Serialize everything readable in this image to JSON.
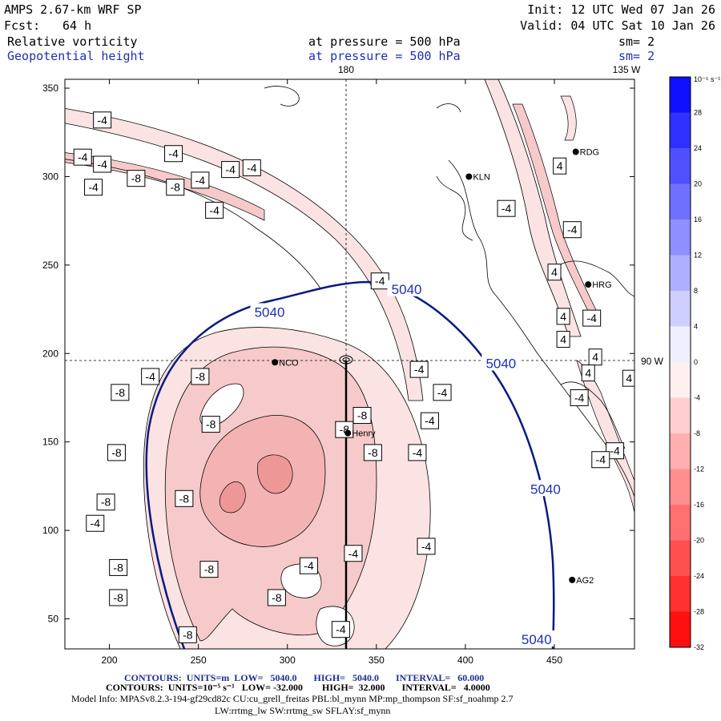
{
  "header": {
    "model": "AMPS 2.67-km WRF SP",
    "init": "Init: 12 UTC Wed 07 Jan 26",
    "fcst_label": "Fcst:",
    "fcst_value": "64 h",
    "valid": "Valid: 04 UTC Sat 10 Jan 26",
    "field1": "Relative vorticity",
    "field1_level": "at pressure =  500 hPa",
    "field1_sm": "sm= 2",
    "field2": "Geopotential height",
    "field2_level": "at pressure =  500 hPa",
    "field2_sm": "sm= 2",
    "lon_180": "180",
    "lon_135w": "135 W",
    "lat_90w": "90 W"
  },
  "footer": {
    "line1": "CONTOURS:  UNITS=m  LOW=   5040.0       HIGH=   5040.0       INTERVAL=   60.000",
    "line2": "CONTOURS:  UNITS=10⁻⁵ s⁻¹   LOW= -32.000        HIGH=  32.000       INTERVAL=   4.0000",
    "line3": "Model Info: MPASv8.2.3-194-gf29cd82c CU:cu_grell_freitas PBL:bl_mynn MP:mp_thompson SF:sf_noahmp 2.7",
    "line4": "LW:rrtmg_lw SW:rrtmg_sw SFLAY:sf_mynn"
  },
  "colors": {
    "neg_light": "#fbe3e3",
    "neg_mid": "#f4bcbc",
    "neg_strong": "#ee9797",
    "geo_line": "#0a1a80",
    "axis": "#000000"
  },
  "chart_data": {
    "type": "contour-map",
    "title": "Relative vorticity / Geopotential height at 500 hPa",
    "x_ticks": [
      200,
      250,
      300,
      350,
      400,
      450
    ],
    "y_ticks": [
      50,
      100,
      150,
      200,
      250,
      300,
      350
    ],
    "xlim": [
      175,
      495
    ],
    "ylim": [
      33,
      355
    ],
    "colorbar": {
      "units": "10⁻⁵ s⁻¹",
      "levels": [
        "32",
        "28",
        "24",
        "20",
        "16",
        "12",
        "8",
        "4",
        "0",
        "-4",
        "-8",
        "-12",
        "-16",
        "-20",
        "-24",
        "-28",
        "-32"
      ]
    },
    "geopotential_label": "5040",
    "geopotential_labels": [
      {
        "x": 290,
        "y": 223
      },
      {
        "x": 367,
        "y": 236
      },
      {
        "x": 420,
        "y": 194
      },
      {
        "x": 445,
        "y": 123
      },
      {
        "x": 440,
        "y": 38
      }
    ],
    "vorticity_labels": [
      {
        "t": "-4",
        "x": 196,
        "y": 332
      },
      {
        "t": "-4",
        "x": 185,
        "y": 311
      },
      {
        "t": "-4",
        "x": 196,
        "y": 307
      },
      {
        "t": "-4",
        "x": 236,
        "y": 313
      },
      {
        "t": "-8",
        "x": 215,
        "y": 299
      },
      {
        "t": "-4",
        "x": 191,
        "y": 294
      },
      {
        "t": "-8",
        "x": 237,
        "y": 294
      },
      {
        "t": "-4",
        "x": 251,
        "y": 298
      },
      {
        "t": "-4",
        "x": 268,
        "y": 304
      },
      {
        "t": "-4",
        "x": 280,
        "y": 305
      },
      {
        "t": "-4",
        "x": 259,
        "y": 281
      },
      {
        "t": "-4",
        "x": 423,
        "y": 282
      },
      {
        "t": "4",
        "x": 453,
        "y": 306
      },
      {
        "t": "-4",
        "x": 460,
        "y": 270
      },
      {
        "t": "4",
        "x": 450,
        "y": 246
      },
      {
        "t": "4",
        "x": 455,
        "y": 221
      },
      {
        "t": "-4",
        "x": 471,
        "y": 220
      },
      {
        "t": "4",
        "x": 455,
        "y": 208
      },
      {
        "t": "4",
        "x": 473,
        "y": 198
      },
      {
        "t": "4",
        "x": 469,
        "y": 189
      },
      {
        "t": "-4",
        "x": 464,
        "y": 175
      },
      {
        "t": "-4",
        "x": 484,
        "y": 145
      },
      {
        "t": "4",
        "x": 492,
        "y": 186
      },
      {
        "t": "-4",
        "x": 352,
        "y": 241
      },
      {
        "t": "-4",
        "x": 223,
        "y": 187
      },
      {
        "t": "-8",
        "x": 251,
        "y": 187
      },
      {
        "t": "-8",
        "x": 206,
        "y": 178
      },
      {
        "t": "-8",
        "x": 257,
        "y": 160
      },
      {
        "t": "-8",
        "x": 342,
        "y": 165
      },
      {
        "t": "-8",
        "x": 332,
        "y": 157
      },
      {
        "t": "-8",
        "x": 348,
        "y": 144
      },
      {
        "t": "-4",
        "x": 374,
        "y": 191
      },
      {
        "t": "-4",
        "x": 387,
        "y": 178
      },
      {
        "t": "-4",
        "x": 380,
        "y": 162
      },
      {
        "t": "-4",
        "x": 373,
        "y": 144
      },
      {
        "t": "-8",
        "x": 204,
        "y": 144
      },
      {
        "t": "-8",
        "x": 242,
        "y": 118
      },
      {
        "t": "-8",
        "x": 198,
        "y": 116
      },
      {
        "t": "-4",
        "x": 192,
        "y": 104
      },
      {
        "t": "-4",
        "x": 378,
        "y": 91
      },
      {
        "t": "-4",
        "x": 337,
        "y": 87
      },
      {
        "t": "-4",
        "x": 312,
        "y": 80
      },
      {
        "t": "-8",
        "x": 205,
        "y": 79
      },
      {
        "t": "-8",
        "x": 256,
        "y": 78
      },
      {
        "t": "-8",
        "x": 205,
        "y": 62
      },
      {
        "t": "-8",
        "x": 294,
        "y": 62
      },
      {
        "t": "-4",
        "x": 330,
        "y": 44
      },
      {
        "t": "-8",
        "x": 244,
        "y": 41
      },
      {
        "t": "-4",
        "x": 476,
        "y": 140
      }
    ],
    "stations": [
      {
        "name": "NCO",
        "x": 293,
        "y": 195
      },
      {
        "name": "Henry",
        "x": 334,
        "y": 155
      },
      {
        "name": "KLN",
        "x": 402,
        "y": 300
      },
      {
        "name": "RDG",
        "x": 462,
        "y": 314
      },
      {
        "name": "HRG",
        "x": 469,
        "y": 239
      },
      {
        "name": "AG2",
        "x": 460,
        "y": 72
      }
    ]
  }
}
